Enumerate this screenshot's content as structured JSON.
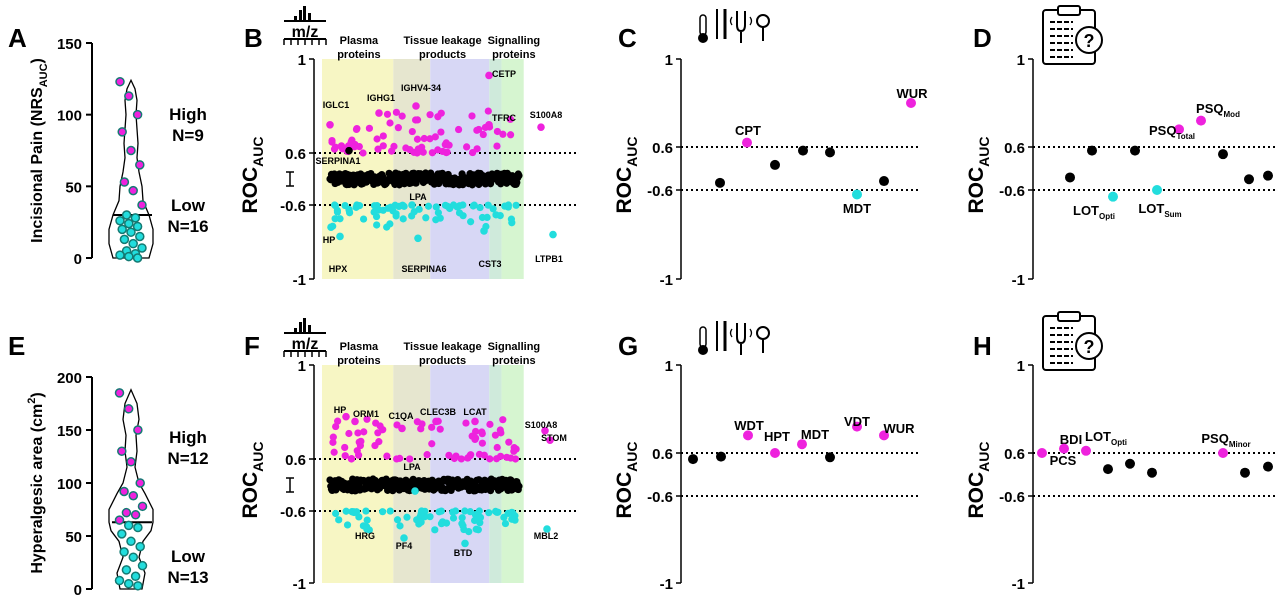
{
  "colors": {
    "high": "#ee22dd",
    "low": "#22dddd",
    "neutral": "#000000",
    "violin_dot": "#147a73",
    "band_plasma": "#f7f6c4",
    "band_tissue_a": "#e6e6cf",
    "band_tissue_b": "#d7d7f5",
    "band_sig_a": "#cfeadb",
    "band_sig_b": "#d6f5d0"
  },
  "icons": [
    "mass-spec-icon",
    "thermometer-icon",
    "vibration-fork-icon",
    "pin-prick-icon",
    "clipboard-question-icon"
  ],
  "ylabel_roc": "ROC",
  "ylabel_roc_sub": "AUC",
  "tick_top": "1",
  "tick_bottom": "-1",
  "tick_pos": "0.6",
  "tick_neg": "-0.6",
  "ms_icon_label": "m/z",
  "bands": {
    "plasma": [
      "Plasma",
      "proteins"
    ],
    "tissue": [
      "Tissue leakage",
      "products"
    ],
    "signalling": [
      "Signalling",
      "proteins"
    ]
  },
  "panels": {
    "A": {
      "letter": "A",
      "ylabel": "Incisional Pain (NRS",
      "ylabel_sub": "AUC",
      "ylabel_end": ")",
      "yticks": [
        "0",
        "50",
        "100",
        "150"
      ],
      "high_label": "High",
      "high_n": "N=9",
      "low_label": "Low",
      "low_n": "N=16"
    },
    "B": {
      "letter": "B"
    },
    "C": {
      "letter": "C"
    },
    "D": {
      "letter": "D"
    },
    "E": {
      "letter": "E",
      "ylabel": "Hyperalgesic area (cm",
      "ylabel_sup": "2",
      "ylabel_end": ")",
      "yticks": [
        "0",
        "50",
        "100",
        "150",
        "200"
      ],
      "high_label": "High",
      "high_n": "N=12",
      "low_label": "Low",
      "low_n": "N=13"
    },
    "F": {
      "letter": "F"
    },
    "G": {
      "letter": "G"
    },
    "H": {
      "letter": "H"
    }
  },
  "chart_data": [
    {
      "panel": "A",
      "type": "violin",
      "ylabel": "Incisional Pain (NRSAUC)",
      "ylim": [
        0,
        150
      ],
      "groups": [
        {
          "name": "High",
          "n": 9
        },
        {
          "name": "Low",
          "n": 16
        }
      ],
      "threshold": 30,
      "values": [
        123,
        113,
        100,
        88,
        75,
        65,
        53,
        47,
        37,
        30,
        28,
        26,
        24,
        22,
        20,
        18,
        15,
        13,
        10,
        7,
        5,
        3,
        2,
        1,
        0
      ]
    },
    {
      "panel": "B",
      "type": "scatter",
      "ylabel": "ROCAUC",
      "ylim": [
        -1,
        1
      ],
      "ticks": [
        "1",
        "0.6",
        "-0.6",
        "-1"
      ],
      "annotations_high": [
        {
          "label": "IGLC1",
          "y": 0.72
        },
        {
          "label": "IGHG1",
          "y": 0.77
        },
        {
          "label": "IGHV4-34",
          "y": 0.8
        },
        {
          "label": "CETP",
          "y": 0.93
        },
        {
          "label": "TFRC",
          "y": 0.72
        },
        {
          "label": "S100A8",
          "y": 0.71
        }
      ],
      "annotations_low": [
        {
          "label": "HP",
          "y": -0.72
        },
        {
          "label": "LPA",
          "y": -0.6
        },
        {
          "label": "HPX",
          "y": -0.77
        },
        {
          "label": "SERPINA6",
          "y": -0.78
        },
        {
          "label": "CST3",
          "y": -0.74
        },
        {
          "label": "LTPB1",
          "y": -0.76
        }
      ],
      "annotations_neutral": [
        {
          "label": "SERPINA1",
          "y": 0.61
        }
      ]
    },
    {
      "panel": "C",
      "type": "scatter",
      "ylabel": "ROCAUC",
      "ylim": [
        -1,
        1
      ],
      "points": [
        {
          "label": "",
          "x": 1,
          "y": -0.4,
          "group": "neutral"
        },
        {
          "label": "CPT",
          "x": 2,
          "y": 0.62,
          "group": "high"
        },
        {
          "label": "",
          "x": 3,
          "y": 0.1,
          "group": "neutral"
        },
        {
          "label": "",
          "x": 4,
          "y": 0.5,
          "group": "neutral"
        },
        {
          "label": "",
          "x": 5,
          "y": 0.45,
          "group": "neutral"
        },
        {
          "label": "MDT",
          "x": 6,
          "y": -0.62,
          "group": "low"
        },
        {
          "label": "",
          "x": 7,
          "y": -0.35,
          "group": "neutral"
        },
        {
          "label": "WUR",
          "x": 8,
          "y": 0.8,
          "group": "high"
        }
      ]
    },
    {
      "panel": "D",
      "type": "scatter",
      "ylabel": "ROCAUC",
      "ylim": [
        -1,
        1
      ],
      "points": [
        {
          "label": "",
          "x": 1,
          "y": -0.25,
          "group": "neutral"
        },
        {
          "label": "",
          "x": 2,
          "y": 0.5,
          "group": "neutral"
        },
        {
          "label": "LOTOpti",
          "x": 3,
          "y": -0.63,
          "group": "low"
        },
        {
          "label": "",
          "x": 4,
          "y": 0.5,
          "group": "neutral"
        },
        {
          "label": "LOTSum",
          "x": 5,
          "y": -0.6,
          "group": "low"
        },
        {
          "label": "PSQTotal",
          "x": 6,
          "y": 0.68,
          "group": "high"
        },
        {
          "label": "PSQMod",
          "x": 7,
          "y": 0.72,
          "group": "high"
        },
        {
          "label": "",
          "x": 8,
          "y": 0.4,
          "group": "neutral"
        },
        {
          "label": "",
          "x": 9,
          "y": -0.3,
          "group": "neutral"
        },
        {
          "label": "",
          "x": 10,
          "y": -0.2,
          "group": "neutral"
        }
      ]
    },
    {
      "panel": "E",
      "type": "violin",
      "ylabel": "Hyperalgesic area (cm2)",
      "ylim": [
        0,
        200
      ],
      "groups": [
        {
          "name": "High",
          "n": 12
        },
        {
          "name": "Low",
          "n": 13
        }
      ],
      "threshold": 63,
      "values": [
        185,
        170,
        150,
        130,
        120,
        100,
        92,
        88,
        78,
        72,
        70,
        65,
        60,
        58,
        52,
        45,
        40,
        35,
        30,
        22,
        18,
        12,
        8,
        5,
        3
      ]
    },
    {
      "panel": "F",
      "type": "scatter",
      "ylabel": "ROCAUC",
      "ylim": [
        -1,
        1
      ],
      "annotations_high": [
        {
          "label": "HP",
          "y": 0.78
        },
        {
          "label": "ORM1",
          "y": 0.76
        },
        {
          "label": "C1QA",
          "y": 0.73
        },
        {
          "label": "CLEC3B",
          "y": 0.76
        },
        {
          "label": "LCAT",
          "y": 0.76
        },
        {
          "label": "S100A8",
          "y": 0.72
        },
        {
          "label": "STOM",
          "y": 0.68
        }
      ],
      "annotations_low": [
        {
          "label": "LPA",
          "y": -0.56
        },
        {
          "label": "HRG",
          "y": -0.7
        },
        {
          "label": "PF4",
          "y": -0.75
        },
        {
          "label": "BTD",
          "y": -0.78
        },
        {
          "label": "MBL2",
          "y": -0.7
        }
      ]
    },
    {
      "panel": "G",
      "type": "scatter",
      "ylabel": "ROCAUC",
      "ylim": [
        -1,
        1
      ],
      "points": [
        {
          "label": "",
          "x": 1,
          "y": 0.43,
          "group": "neutral"
        },
        {
          "label": "",
          "x": 2,
          "y": 0.5,
          "group": "neutral"
        },
        {
          "label": "WDT",
          "x": 3,
          "y": 0.68,
          "group": "high"
        },
        {
          "label": "HPT",
          "x": 4,
          "y": 0.6,
          "group": "high"
        },
        {
          "label": "MDT",
          "x": 5,
          "y": 0.64,
          "group": "high"
        },
        {
          "label": "",
          "x": 6,
          "y": 0.48,
          "group": "neutral"
        },
        {
          "label": "VDT",
          "x": 7,
          "y": 0.72,
          "group": "high"
        },
        {
          "label": "WUR",
          "x": 8,
          "y": 0.68,
          "group": "high"
        }
      ]
    },
    {
      "panel": "H",
      "type": "scatter",
      "ylabel": "ROCAUC",
      "ylim": [
        -1,
        1
      ],
      "points": [
        {
          "label": "BDI",
          "x": 1,
          "y": 0.6,
          "group": "high"
        },
        {
          "label": "PCS",
          "x": 2,
          "y": 0.62,
          "group": "high"
        },
        {
          "label": "LOTOpti",
          "x": 3,
          "y": 0.61,
          "group": "high"
        },
        {
          "label": "",
          "x": 4,
          "y": 0.15,
          "group": "neutral"
        },
        {
          "label": "",
          "x": 5,
          "y": 0.3,
          "group": "neutral"
        },
        {
          "label": "",
          "x": 6,
          "y": 0.05,
          "group": "neutral"
        },
        {
          "label": "PSQMinor",
          "x": 7,
          "y": 0.6,
          "group": "high"
        },
        {
          "label": "",
          "x": 8,
          "y": 0.05,
          "group": "neutral"
        },
        {
          "label": "",
          "x": 9,
          "y": 0.22,
          "group": "neutral"
        }
      ]
    }
  ]
}
